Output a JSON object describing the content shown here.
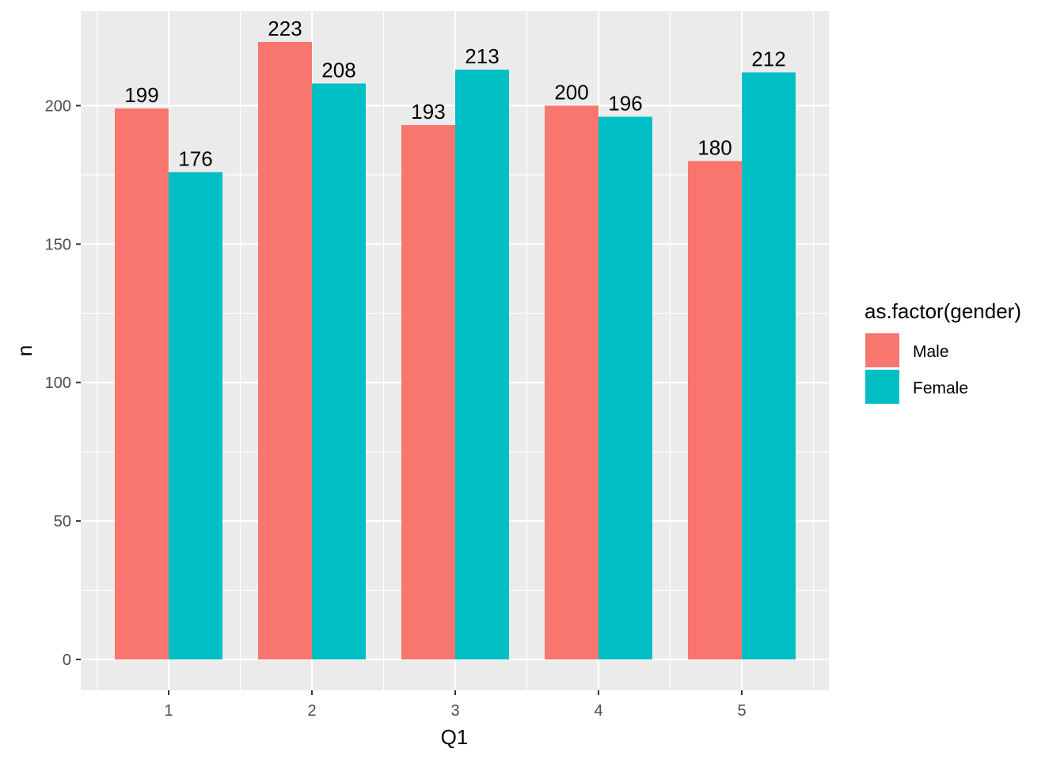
{
  "chart_data": {
    "type": "bar",
    "categories": [
      "1",
      "2",
      "3",
      "4",
      "5"
    ],
    "series": [
      {
        "name": "Male",
        "values": [
          199,
          223,
          193,
          200,
          180
        ],
        "color": "#F8766D"
      },
      {
        "name": "Female",
        "values": [
          176,
          208,
          213,
          196,
          212
        ],
        "color": "#00BFC4"
      }
    ],
    "xlabel": "Q1",
    "ylabel": "n",
    "ylim": [
      -11.15,
      234.15
    ],
    "yticks": [
      0,
      50,
      100,
      150,
      200
    ],
    "grid": true,
    "panel_background": "#EBEBEB",
    "grid_color": "#FFFFFF",
    "legend": {
      "title": "as.factor(gender)",
      "placement": "right"
    }
  }
}
